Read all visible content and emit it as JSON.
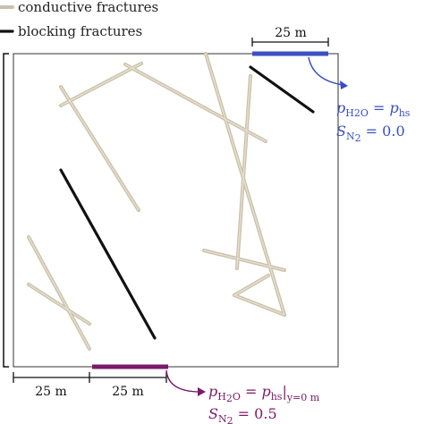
{
  "legend": {
    "conductive": "conductive fractures",
    "blocking": "blocking fractures"
  },
  "top_boundary": {
    "width_label": "25 m",
    "line1": {
      "p": "p",
      "sub": "H2O",
      "sub_sub": "2",
      "sub_end": "O",
      "eq": " = ",
      "rhs": "p",
      "rhs_sub": "hs"
    },
    "line2": {
      "s": "S",
      "sub": "N",
      "sub_sub": "2",
      "eq": " = 0.0"
    }
  },
  "bottom_boundary": {
    "left_label": "25 m",
    "right_label": "25 m",
    "line1": {
      "p": "p",
      "sub": "H",
      "sub_sub": "2",
      "sub_end": "O",
      "eq": " = ",
      "rhs": "p",
      "rhs_sub": "hs",
      "bar": "|",
      "cond": "y=0 m"
    },
    "line2": {
      "s": "S",
      "sub": "N",
      "sub_sub": "2",
      "eq": " = 0.5"
    }
  }
}
